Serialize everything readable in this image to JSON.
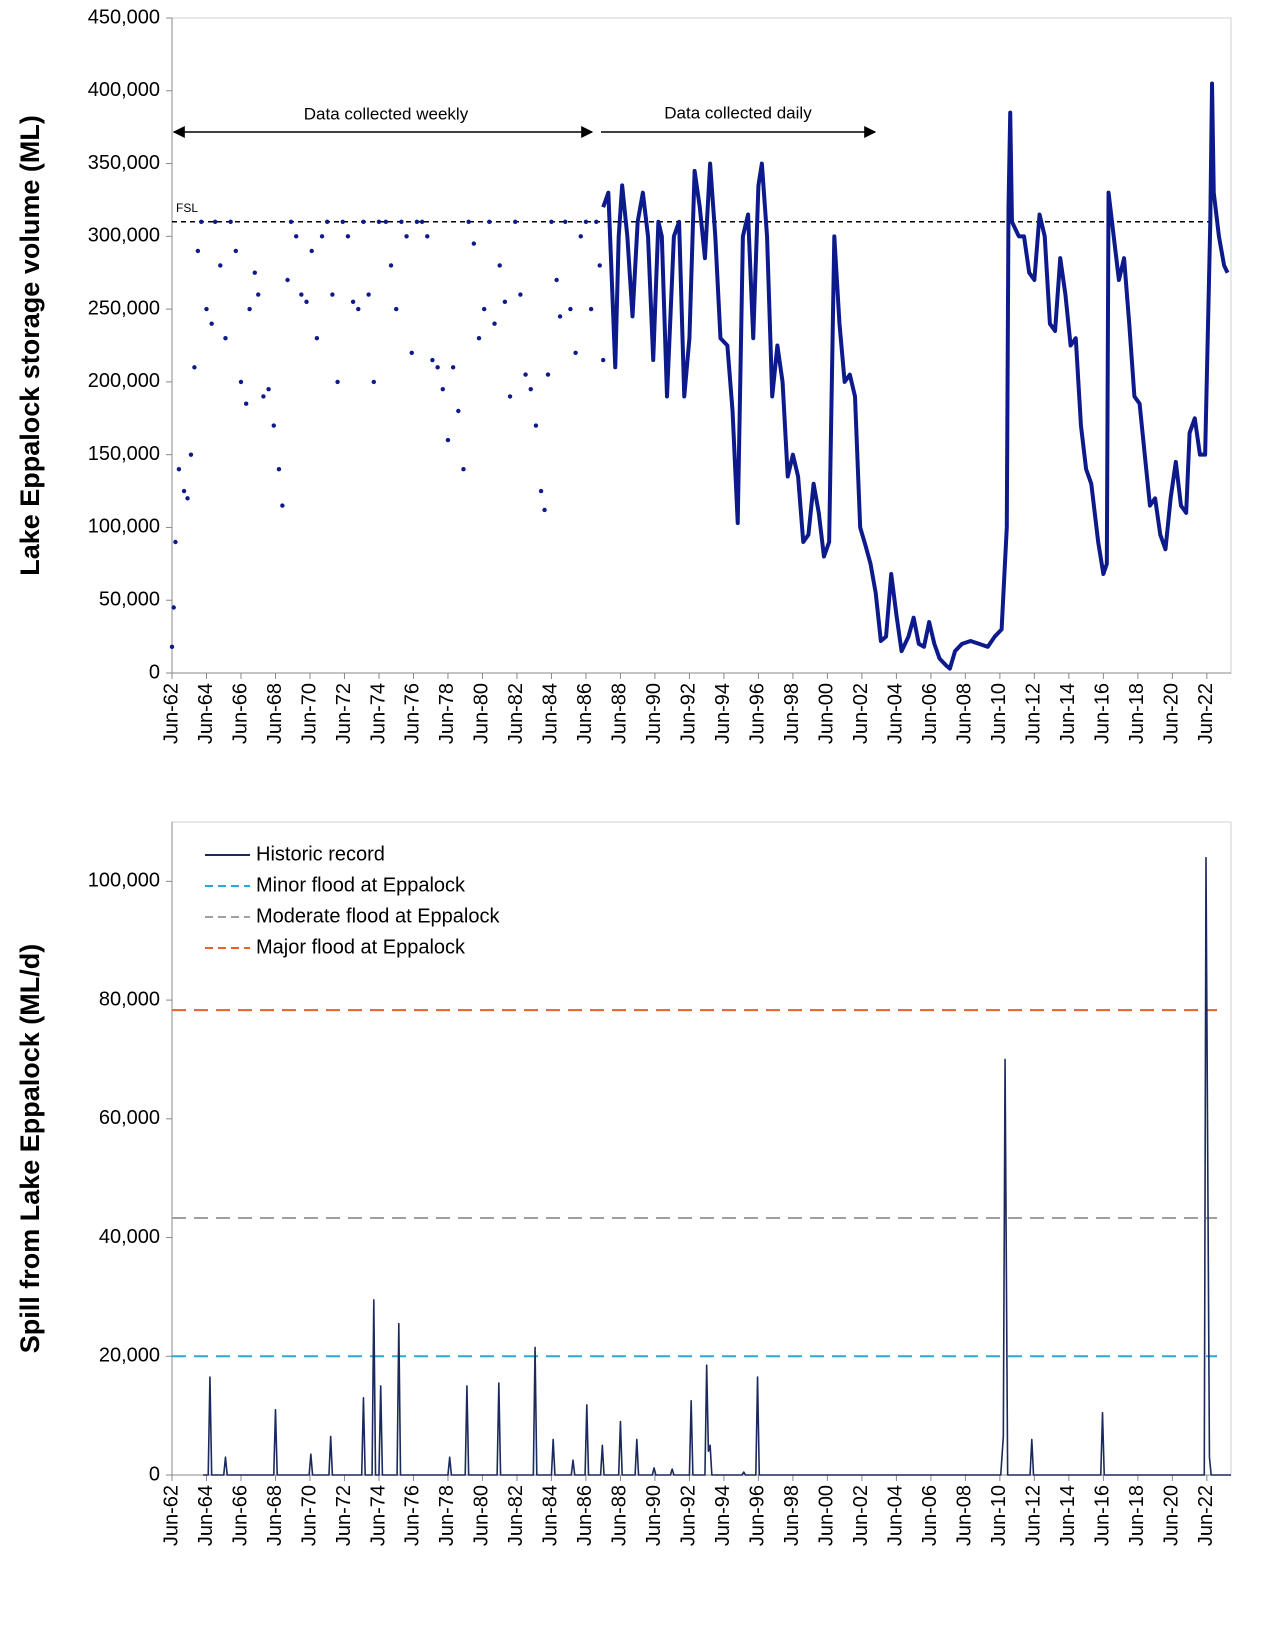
{
  "chart_data": [
    {
      "type": "line",
      "y_label": "Lake Eppalock storage volume (ML)",
      "annotations": [
        "Data collected weekly",
        "Data collected daily"
      ],
      "xlim": [
        1962.5,
        2023.9
      ],
      "xticks": [
        {
          "value": 1962.5,
          "label": "Jun-62"
        },
        {
          "value": 1964.5,
          "label": "Jun-64"
        },
        {
          "value": 1966.5,
          "label": "Jun-66"
        },
        {
          "value": 1968.5,
          "label": "Jun-68"
        },
        {
          "value": 1970.5,
          "label": "Jun-70"
        },
        {
          "value": 1972.5,
          "label": "Jun-72"
        },
        {
          "value": 1974.5,
          "label": "Jun-74"
        },
        {
          "value": 1976.5,
          "label": "Jun-76"
        },
        {
          "value": 1978.5,
          "label": "Jun-78"
        },
        {
          "value": 1980.5,
          "label": "Jun-80"
        },
        {
          "value": 1982.5,
          "label": "Jun-82"
        },
        {
          "value": 1984.5,
          "label": "Jun-84"
        },
        {
          "value": 1986.5,
          "label": "Jun-86"
        },
        {
          "value": 1988.5,
          "label": "Jun-88"
        },
        {
          "value": 1990.5,
          "label": "Jun-90"
        },
        {
          "value": 1992.5,
          "label": "Jun-92"
        },
        {
          "value": 1994.5,
          "label": "Jun-94"
        },
        {
          "value": 1996.5,
          "label": "Jun-96"
        },
        {
          "value": 1998.5,
          "label": "Jun-98"
        },
        {
          "value": 2000.5,
          "label": "Jun-00"
        },
        {
          "value": 2002.5,
          "label": "Jun-02"
        },
        {
          "value": 2004.5,
          "label": "Jun-04"
        },
        {
          "value": 2006.5,
          "label": "Jun-06"
        },
        {
          "value": 2008.5,
          "label": "Jun-08"
        },
        {
          "value": 2010.5,
          "label": "Jun-10"
        },
        {
          "value": 2012.5,
          "label": "Jun-12"
        },
        {
          "value": 2014.5,
          "label": "Jun-14"
        },
        {
          "value": 2016.5,
          "label": "Jun-16"
        },
        {
          "value": 2018.5,
          "label": "Jun-18"
        },
        {
          "value": 2020.5,
          "label": "Jun-20"
        },
        {
          "value": 2022.5,
          "label": "Jun-22"
        }
      ],
      "ylim": [
        0,
        450000
      ],
      "yticks": [
        0,
        {
          "value": 50000,
          "label": "50,000"
        },
        {
          "value": 100000,
          "label": "100,000"
        },
        {
          "value": 150000,
          "label": "150,000"
        },
        {
          "value": 200000,
          "label": "200,000"
        },
        {
          "value": 250000,
          "label": "250,000"
        },
        {
          "value": 300000,
          "label": "300,000"
        },
        {
          "value": 350000,
          "label": "350,000"
        },
        {
          "value": 400000,
          "label": "400,000"
        },
        {
          "value": 450000,
          "label": "450,000"
        }
      ],
      "reference_lines": [
        {
          "label": "FSL",
          "value": 310000,
          "color": "#000000"
        }
      ],
      "series": [
        {
          "color": "#0d1a8c",
          "style": "markers",
          "x": [
            1962.5,
            1962.6,
            1962.7,
            1962.9,
            1963.2,
            1963.4,
            1963.6,
            1963.8,
            1964.0,
            1964.2,
            1964.5,
            1964.8,
            1965.0,
            1965.3,
            1965.6,
            1965.9,
            1966.2,
            1966.5,
            1966.8,
            1967.0,
            1967.3,
            1967.5,
            1967.8,
            1968.1,
            1968.4,
            1968.7,
            1968.9,
            1969.2,
            1969.4,
            1969.7,
            1970.0,
            1970.3,
            1970.6,
            1970.9,
            1971.2,
            1971.5,
            1971.8,
            1972.1,
            1972.4,
            1972.7,
            1973.0,
            1973.3,
            1973.6,
            1973.9,
            1974.2,
            1974.5,
            1974.9,
            1975.2,
            1975.5,
            1975.8,
            1976.1,
            1976.4,
            1976.7,
            1977.0,
            1977.3,
            1977.6,
            1977.9,
            1978.2,
            1978.5,
            1978.8,
            1979.1,
            1979.4,
            1979.7,
            1980.0,
            1980.3,
            1980.6,
            1980.9,
            1981.2,
            1981.5,
            1981.8,
            1982.1,
            1982.4,
            1982.7,
            1983.0,
            1983.3,
            1983.6,
            1983.9,
            1984.1,
            1984.3,
            1984.5,
            1984.8,
            1985.0,
            1985.3,
            1985.6,
            1985.9,
            1986.2,
            1986.5,
            1986.8,
            1987.1,
            1987.3,
            1987.5
          ],
          "values": [
            18000,
            45000,
            90000,
            140000,
            125000,
            120000,
            150000,
            210000,
            290000,
            310000,
            250000,
            240000,
            310000,
            280000,
            230000,
            310000,
            290000,
            200000,
            185000,
            250000,
            275000,
            260000,
            190000,
            195000,
            170000,
            140000,
            115000,
            270000,
            310000,
            300000,
            260000,
            255000,
            290000,
            230000,
            300000,
            310000,
            260000,
            200000,
            310000,
            300000,
            255000,
            250000,
            310000,
            260000,
            200000,
            310000,
            310000,
            280000,
            250000,
            310000,
            300000,
            220000,
            310000,
            310000,
            300000,
            215000,
            210000,
            195000,
            160000,
            210000,
            180000,
            140000,
            310000,
            295000,
            230000,
            250000,
            310000,
            240000,
            280000,
            255000,
            190000,
            310000,
            260000,
            205000,
            195000,
            170000,
            125000,
            112000,
            205000,
            310000,
            270000,
            245000,
            310000,
            250000,
            220000,
            300000,
            310000,
            250000,
            310000,
            280000,
            215000
          ]
        },
        {
          "color": "#0d1a8c",
          "style": "line",
          "x": [
            1987.5,
            1987.8,
            1988.2,
            1988.4,
            1988.6,
            1988.9,
            1989.2,
            1989.5,
            1989.8,
            1990.1,
            1990.4,
            1990.7,
            1990.9,
            1991.2,
            1991.6,
            1991.9,
            1992.2,
            1992.5,
            1992.8,
            1993.1,
            1993.4,
            1993.7,
            1994.0,
            1994.3,
            1994.7,
            1995.0,
            1995.3,
            1995.6,
            1995.9,
            1996.2,
            1996.5,
            1996.7,
            1997.0,
            1997.3,
            1997.6,
            1997.9,
            1998.2,
            1998.5,
            1998.8,
            1999.1,
            1999.4,
            1999.7,
            2000.0,
            2000.3,
            2000.6,
            2000.9,
            2001.2,
            2001.5,
            2001.8,
            2002.1,
            2002.4,
            2002.7,
            2003.0,
            2003.3,
            2003.6,
            2003.9,
            2004.2,
            2004.5,
            2004.8,
            2005.2,
            2005.5,
            2005.8,
            2006.1,
            2006.4,
            2006.7,
            2007.0,
            2007.4,
            2007.6,
            2007.9,
            2008.3,
            2008.8,
            2009.3,
            2009.8,
            2010.2,
            2010.6,
            2010.9,
            2011.0,
            2011.1,
            2011.2,
            2011.6,
            2011.9,
            2012.2,
            2012.5,
            2012.8,
            2013.1,
            2013.4,
            2013.7,
            2014.0,
            2014.3,
            2014.6,
            2014.9,
            2015.2,
            2015.5,
            2015.8,
            2016.2,
            2016.5,
            2016.7,
            2016.8,
            2017.1,
            2017.4,
            2017.7,
            2018.0,
            2018.3,
            2018.6,
            2018.9,
            2019.2,
            2019.5,
            2019.8,
            2020.1,
            2020.4,
            2020.7,
            2021.0,
            2021.3,
            2021.5,
            2021.8,
            2022.1,
            2022.4,
            2022.7,
            2022.8,
            2022.9,
            2023.2,
            2023.5,
            2023.7
          ],
          "values": [
            320000,
            330000,
            210000,
            300000,
            335000,
            300000,
            245000,
            310000,
            330000,
            300000,
            215000,
            310000,
            300000,
            190000,
            300000,
            310000,
            190000,
            230000,
            345000,
            320000,
            285000,
            350000,
            300000,
            230000,
            225000,
            180000,
            103000,
            300000,
            315000,
            230000,
            335000,
            350000,
            300000,
            190000,
            225000,
            200000,
            135000,
            150000,
            135000,
            90000,
            95000,
            130000,
            110000,
            80000,
            90000,
            300000,
            240000,
            200000,
            205000,
            190000,
            100000,
            88000,
            75000,
            55000,
            22000,
            25000,
            68000,
            40000,
            15000,
            25000,
            38000,
            20000,
            18000,
            35000,
            20000,
            10000,
            5000,
            3000,
            15000,
            20000,
            22000,
            20000,
            18000,
            25000,
            30000,
            100000,
            320000,
            385000,
            310000,
            300000,
            300000,
            275000,
            270000,
            315000,
            300000,
            240000,
            235000,
            285000,
            260000,
            225000,
            230000,
            170000,
            140000,
            130000,
            90000,
            68000,
            75000,
            330000,
            300000,
            270000,
            285000,
            240000,
            190000,
            185000,
            150000,
            115000,
            120000,
            95000,
            85000,
            120000,
            145000,
            115000,
            110000,
            165000,
            175000,
            150000,
            150000,
            310000,
            405000,
            330000,
            300000,
            280000,
            275000
          ]
        }
      ]
    },
    {
      "type": "line",
      "y_label": "Spill from Lake Eppalock (ML/d)",
      "legend": "upper left",
      "xlim": [
        1962.5,
        2023.9
      ],
      "xticks": [
        {
          "value": 1962.5,
          "label": "Jun-62"
        },
        {
          "value": 1964.5,
          "label": "Jun-64"
        },
        {
          "value": 1966.5,
          "label": "Jun-66"
        },
        {
          "value": 1968.5,
          "label": "Jun-68"
        },
        {
          "value": 1970.5,
          "label": "Jun-70"
        },
        {
          "value": 1972.5,
          "label": "Jun-72"
        },
        {
          "value": 1974.5,
          "label": "Jun-74"
        },
        {
          "value": 1976.5,
          "label": "Jun-76"
        },
        {
          "value": 1978.5,
          "label": "Jun-78"
        },
        {
          "value": 1980.5,
          "label": "Jun-80"
        },
        {
          "value": 1982.5,
          "label": "Jun-82"
        },
        {
          "value": 1984.5,
          "label": "Jun-84"
        },
        {
          "value": 1986.5,
          "label": "Jun-86"
        },
        {
          "value": 1988.5,
          "label": "Jun-88"
        },
        {
          "value": 1990.5,
          "label": "Jun-90"
        },
        {
          "value": 1992.5,
          "label": "Jun-92"
        },
        {
          "value": 1994.5,
          "label": "Jun-94"
        },
        {
          "value": 1996.5,
          "label": "Jun-96"
        },
        {
          "value": 1998.5,
          "label": "Jun-98"
        },
        {
          "value": 2000.5,
          "label": "Jun-00"
        },
        {
          "value": 2002.5,
          "label": "Jun-02"
        },
        {
          "value": 2004.5,
          "label": "Jun-04"
        },
        {
          "value": 2006.5,
          "label": "Jun-06"
        },
        {
          "value": 2008.5,
          "label": "Jun-08"
        },
        {
          "value": 2010.5,
          "label": "Jun-10"
        },
        {
          "value": 2012.5,
          "label": "Jun-12"
        },
        {
          "value": 2014.5,
          "label": "Jun-14"
        },
        {
          "value": 2016.5,
          "label": "Jun-16"
        },
        {
          "value": 2018.5,
          "label": "Jun-18"
        },
        {
          "value": 2020.5,
          "label": "Jun-20"
        },
        {
          "value": 2022.5,
          "label": "Jun-22"
        }
      ],
      "ylim": [
        0,
        110000
      ],
      "yticks": [
        0,
        {
          "value": 20000,
          "label": "20,000"
        },
        {
          "value": 40000,
          "label": "40,000"
        },
        {
          "value": 60000,
          "label": "60,000"
        },
        {
          "value": 80000,
          "label": "80,000"
        },
        {
          "value": 100000,
          "label": "100,000"
        }
      ],
      "series": [
        {
          "name": "Historic record",
          "color": "#1b2a5e",
          "style": "line",
          "x": [
            1964.3,
            1964.6,
            1964.7,
            1964.8,
            1965.5,
            1965.6,
            1965.7,
            1968.4,
            1968.5,
            1968.6,
            1970.45,
            1970.55,
            1970.65,
            1971.6,
            1971.7,
            1971.8,
            1973.5,
            1973.6,
            1973.7,
            1974.1,
            1974.2,
            1974.3,
            1974.5,
            1974.6,
            1974.7,
            1975.55,
            1975.65,
            1975.75,
            1978.5,
            1978.6,
            1978.7,
            1979.5,
            1979.6,
            1979.7,
            1981.35,
            1981.45,
            1981.55,
            1983.45,
            1983.55,
            1983.65,
            1984.5,
            1984.6,
            1984.7,
            1985.65,
            1985.75,
            1985.85,
            1986.45,
            1986.55,
            1986.65,
            1987.35,
            1987.45,
            1987.55,
            1988.4,
            1988.5,
            1988.6,
            1989.35,
            1989.45,
            1989.55,
            1990.35,
            1990.45,
            1990.55,
            1991.4,
            1991.5,
            1991.6,
            1992.5,
            1992.6,
            1992.7,
            1993.4,
            1993.5,
            1993.6,
            1993.7,
            1993.8,
            1995.55,
            1995.65,
            1995.75,
            1996.35,
            1996.45,
            1996.55,
            2010.55,
            2010.7,
            2010.8,
            2010.95,
            2012.25,
            2012.35,
            2012.45,
            2016.35,
            2016.45,
            2016.55,
            2022.35,
            2022.45,
            2022.65,
            2022.75,
            2023.9
          ],
          "values": [
            0,
            0,
            16500,
            0,
            0,
            3000,
            0,
            0,
            11000,
            0,
            0,
            3500,
            0,
            0,
            6500,
            0,
            0,
            13000,
            0,
            0,
            29500,
            0,
            0,
            15000,
            0,
            0,
            25500,
            0,
            0,
            3000,
            0,
            0,
            15000,
            0,
            0,
            15500,
            0,
            0,
            21500,
            0,
            0,
            6000,
            0,
            0,
            2500,
            0,
            0,
            11800,
            0,
            0,
            5000,
            0,
            0,
            9000,
            0,
            0,
            6000,
            0,
            0,
            1200,
            0,
            0,
            1000,
            0,
            0,
            12500,
            0,
            0,
            18500,
            4000,
            5000,
            0,
            0,
            500,
            0,
            0,
            16500,
            0,
            0,
            6500,
            70000,
            0,
            0,
            6000,
            0,
            0,
            10500,
            0,
            0,
            104000,
            3000,
            0,
            0
          ]
        }
      ],
      "reference_lines": [
        {
          "label": "Minor flood at Eppalock",
          "value": 20000,
          "color": "#2aa7d6"
        },
        {
          "label": "Moderate flood at Eppalock",
          "value": 43300,
          "color": "#a0a0a0"
        },
        {
          "label": "Major flood at Eppalock",
          "value": 78300,
          "color": "#e8602a"
        }
      ]
    }
  ]
}
